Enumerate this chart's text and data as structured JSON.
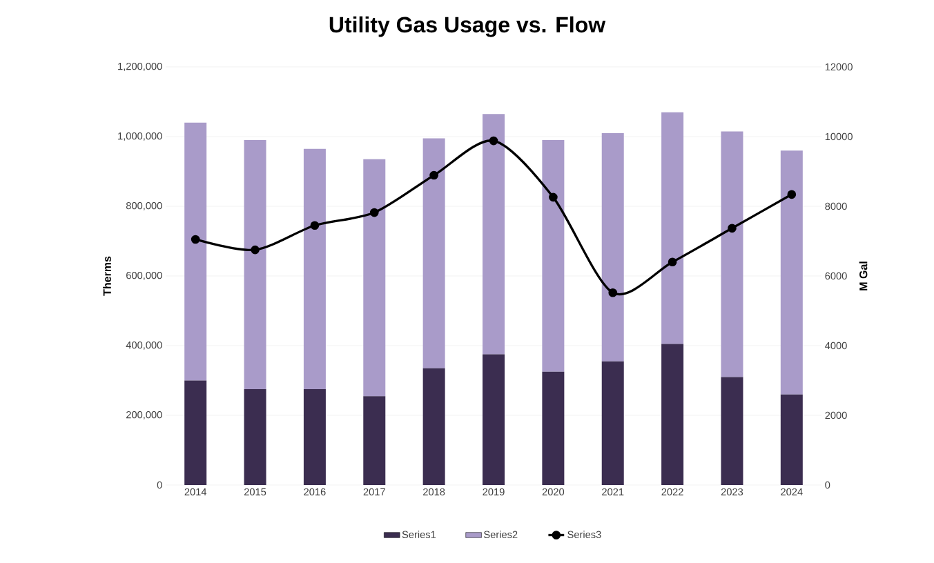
{
  "chart_data": {
    "type": "bar",
    "title": "Utility Gas Usage vs. Flow",
    "ylabel": "Therms",
    "y2label": "M Gal",
    "categories": [
      "2014",
      "2015",
      "2016",
      "2017",
      "2018",
      "2019",
      "2020",
      "2021",
      "2022",
      "2023",
      "2024"
    ],
    "stacked": true,
    "series": [
      {
        "name": "Series1",
        "color": "#3b2d50",
        "values": [
          300000,
          275000,
          275000,
          255000,
          335000,
          375000,
          325000,
          355000,
          405000,
          310000,
          260000
        ]
      },
      {
        "name": "Series2",
        "color": "#a99bc9",
        "values": [
          740000,
          715000,
          690000,
          680000,
          660000,
          690000,
          665000,
          655000,
          665000,
          705000,
          700000
        ]
      },
      {
        "name": "Series3",
        "type": "line",
        "axis": "y2",
        "color": "#000000",
        "values": [
          7050,
          6750,
          7450,
          7820,
          8890,
          9880,
          8260,
          5520,
          6400,
          7370,
          8340
        ]
      }
    ],
    "ylim": [
      0,
      1200000
    ],
    "yticks": [
      0,
      {
        "value": 200000,
        "label": "200,000"
      },
      {
        "value": 400000,
        "label": "400,000"
      },
      {
        "value": 600000,
        "label": "600,000"
      },
      {
        "value": 800000,
        "label": "800,000"
      },
      {
        "value": 1000000,
        "label": "1,000,000"
      },
      {
        "value": 1200000,
        "label": "1,200,000"
      }
    ],
    "y2lim": [
      0,
      12000
    ],
    "y2ticks": [
      0,
      2000,
      4000,
      6000,
      8000,
      10000,
      12000
    ],
    "grid": "y",
    "legend": "bottom",
    "marker": "circle",
    "line_style": "solid"
  }
}
